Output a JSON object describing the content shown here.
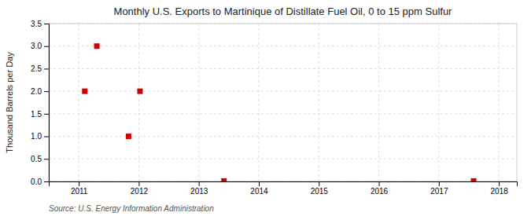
{
  "chart_data": {
    "type": "scatter",
    "title": "Monthly U.S. Exports to Martinique of Distillate Fuel Oil, 0 to 15 ppm Sulfur",
    "y_label": "Thousand Barrels per Day",
    "annotation": "Source: U.S. Energy Information Administration",
    "x": [
      2011.1,
      2011.3,
      2011.83,
      2012.02,
      2013.42,
      2017.58
    ],
    "values": [
      2.0,
      3.0,
      1.0,
      2.0,
      0.01,
      0.01
    ],
    "color": "#cc0000",
    "marker": "square",
    "xlim": [
      2010.5,
      2018.3
    ],
    "ylim": [
      0,
      3.5
    ],
    "xticks": [
      2011,
      2012,
      2013,
      2014,
      2015,
      2016,
      2017,
      2018
    ],
    "yticks": [
      {
        "value": 0.0,
        "label": "0.0"
      },
      0.5,
      {
        "value": 1.0,
        "label": "1.0"
      },
      1.5,
      {
        "value": 2.0,
        "label": "2.0"
      },
      2.5,
      {
        "value": 3.0,
        "label": "3.0"
      },
      3.5
    ],
    "grid": true
  }
}
